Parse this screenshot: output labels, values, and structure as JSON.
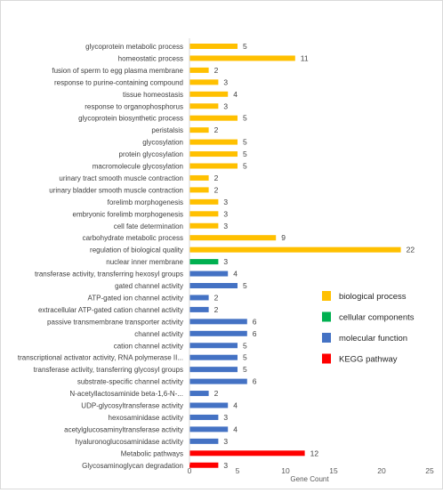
{
  "chart_data": {
    "type": "bar",
    "orientation": "horizontal",
    "categories": [
      "glycoprotein metabolic process",
      "homeostatic process",
      "fusion of sperm to egg plasma membrane",
      "response to purine-containing compound",
      "tissue homeostasis",
      "response to organophosphorus",
      "glycoprotein biosynthetic process",
      "peristalsis",
      "glycosylation",
      "protein glycosylation",
      "macromolecule glycosylation",
      "urinary tract smooth muscle contraction",
      "urinary bladder smooth muscle contraction",
      "forelimb morphogenesis",
      "embryonic forelimb morphogenesis",
      "cell fate determination",
      "carbohydrate metabolic process",
      "regulation of biological quality",
      "nuclear inner membrane",
      "transferase activity, transferring hexosyl groups",
      "gated channel activity",
      "ATP-gated ion channel activity",
      "extracellular ATP-gated cation channel activity",
      "passive transmembrane transporter activity",
      "channel activity",
      "cation channel activity",
      "transcriptional activator activity, RNA polymerase II...",
      "transferase activity, transferring glycosyl groups",
      "substrate-specific channel activity",
      "N-acetyllactosaminide beta-1,6-N-...",
      "UDP-glycosyltransferase activity",
      "hexosaminidase activity",
      "acetylglucosaminyltransferase activity",
      "hyaluronoglucosaminidase activity",
      "Metabolic pathways",
      "Glycosaminoglycan degradation"
    ],
    "values": [
      5,
      11,
      2,
      3,
      4,
      3,
      5,
      2,
      5,
      5,
      5,
      2,
      2,
      3,
      3,
      3,
      9,
      22,
      3,
      4,
      5,
      2,
      2,
      6,
      6,
      5,
      5,
      5,
      6,
      2,
      4,
      3,
      4,
      3,
      12,
      3
    ],
    "groups": [
      "bp",
      "bp",
      "bp",
      "bp",
      "bp",
      "bp",
      "bp",
      "bp",
      "bp",
      "bp",
      "bp",
      "bp",
      "bp",
      "bp",
      "bp",
      "bp",
      "bp",
      "bp",
      "cc",
      "mf",
      "mf",
      "mf",
      "mf",
      "mf",
      "mf",
      "mf",
      "mf",
      "mf",
      "mf",
      "mf",
      "mf",
      "mf",
      "mf",
      "mf",
      "kegg",
      "kegg"
    ],
    "colors": {
      "bp": "#ffc000",
      "cc": "#00b050",
      "mf": "#4472c4",
      "kegg": "#ff0000"
    },
    "xlabel": "Gene Count",
    "xlim": [
      0,
      25
    ],
    "xticks": [
      0,
      5,
      10,
      15,
      20,
      25
    ],
    "grid": false,
    "legend_position": "right",
    "legend": [
      {
        "key": "bp",
        "label": "biological process"
      },
      {
        "key": "cc",
        "label": "cellular components"
      },
      {
        "key": "mf",
        "label": "molecular function"
      },
      {
        "key": "kegg",
        "label": "KEGG pathway"
      }
    ]
  }
}
